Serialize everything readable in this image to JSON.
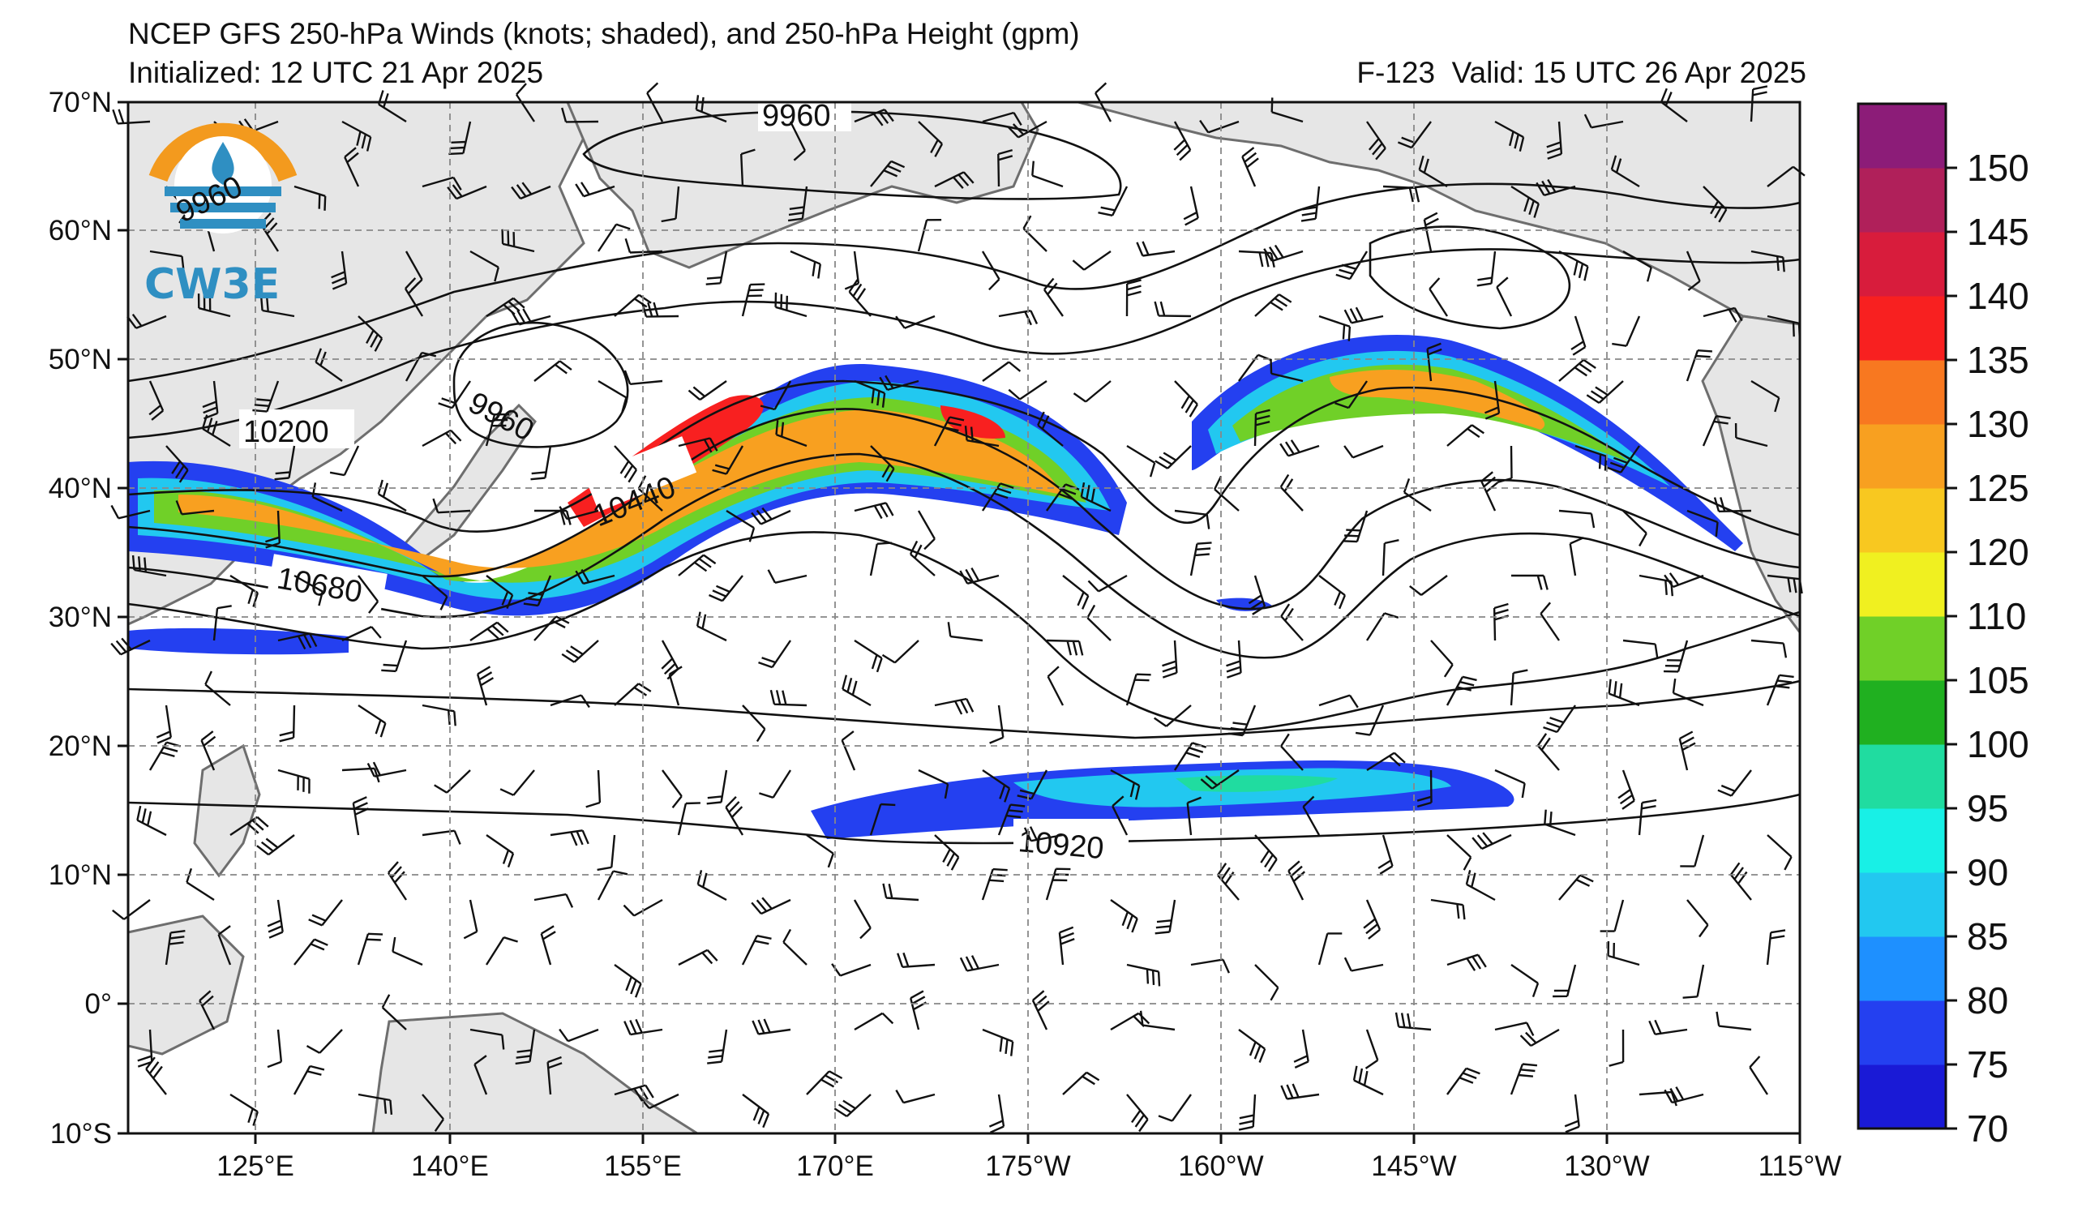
{
  "header": {
    "title": "NCEP GFS 250-hPa Winds (knots; shaded), and 250-hPa Height (gpm)",
    "init": "Initialized: 12 UTC 21 Apr 2025",
    "valid": "F-123  Valid: 15 UTC 26 Apr 2025"
  },
  "logo": {
    "text": "CW3E",
    "badge_text": "9960"
  },
  "axes": {
    "lat_labels": [
      "70°N",
      "60°N",
      "50°N",
      "40°N",
      "30°N",
      "20°N",
      "10°N",
      "0°",
      "10°S"
    ],
    "lon_labels": [
      "125°E",
      "140°E",
      "155°E",
      "170°E",
      "175°W",
      "160°W",
      "145°W",
      "130°W",
      "115°W"
    ]
  },
  "contour_labels": [
    {
      "text": "9960"
    },
    {
      "text": "10200"
    },
    {
      "text": "9960"
    },
    {
      "text": "10440"
    },
    {
      "text": "10680"
    },
    {
      "text": "10920"
    }
  ],
  "colorbar": {
    "labels": [
      "70",
      "75",
      "80",
      "85",
      "90",
      "95",
      "100",
      "105",
      "110",
      "120",
      "125",
      "130",
      "135",
      "140",
      "145",
      "150"
    ],
    "colors": [
      "#1a1ad6",
      "#2440f0",
      "#1e90ff",
      "#22c8f0",
      "#18f0e6",
      "#20dca0",
      "#20b020",
      "#70d028",
      "#f0f020",
      "#f8c820",
      "#f8a020",
      "#f87820",
      "#f82020",
      "#d81c3c",
      "#b0205a",
      "#8c1c78"
    ]
  }
}
